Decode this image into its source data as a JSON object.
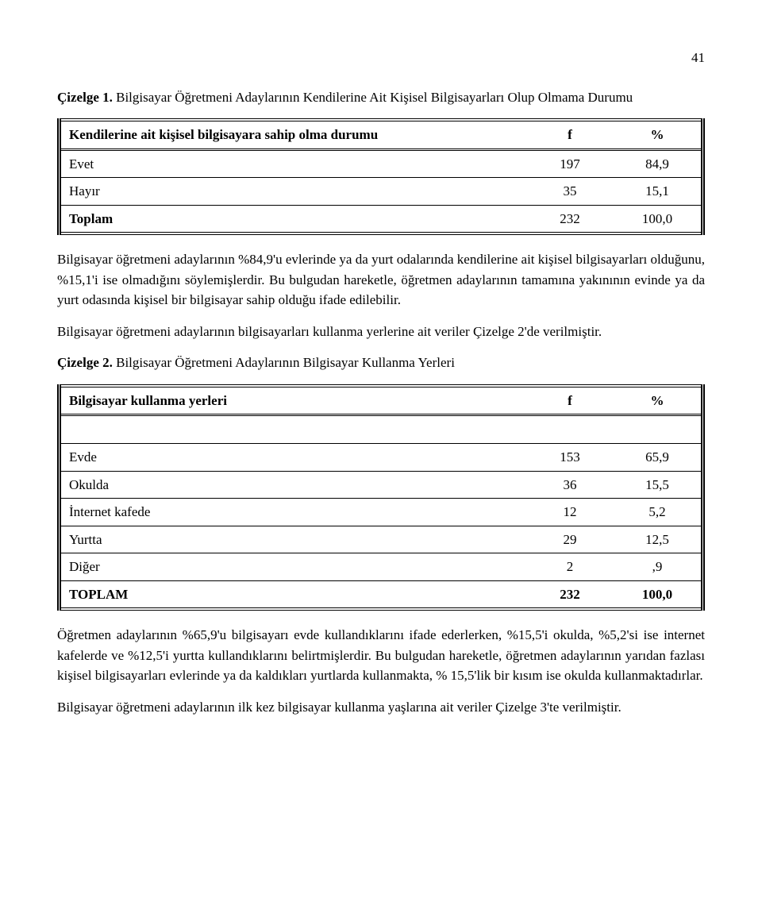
{
  "page_number": "41",
  "caption1_prefix": "Çizelge 1.",
  "caption1_text": " Bilgisayar Öğretmeni Adaylarının Kendilerine Ait Kişisel Bilgisayarları Olup Olmama Durumu",
  "table1": {
    "header_label": "Kendilerine ait kişisel bilgisayara sahip olma durumu",
    "header_f": "f",
    "header_pct": "%",
    "rows": [
      {
        "label": "Evet",
        "f": "197",
        "pct": "84,9"
      },
      {
        "label": "Hayır",
        "f": "35",
        "pct": "15,1"
      },
      {
        "label": "Toplam",
        "f": "232",
        "pct": "100,0"
      }
    ]
  },
  "para1": "Bilgisayar öğretmeni adaylarının %84,9'u evlerinde ya da yurt odalarında kendilerine ait kişisel bilgisayarları olduğunu, %15,1'i ise olmadığını söylemişlerdir. Bu bulgudan hareketle, öğretmen adaylarının tamamına yakınının evinde ya da yurt odasında kişisel bir bilgisayar sahip olduğu ifade edilebilir.",
  "para2": "Bilgisayar öğretmeni adaylarının bilgisayarları kullanma yerlerine ait veriler Çizelge 2'de verilmiştir.",
  "caption2_prefix": "Çizelge 2.",
  "caption2_text": " Bilgisayar Öğretmeni Adaylarının Bilgisayar Kullanma Yerleri",
  "table2": {
    "header_label": "Bilgisayar kullanma yerleri",
    "header_f": "f",
    "header_pct": "%",
    "rows": [
      {
        "label": "Evde",
        "f": "153",
        "pct": "65,9"
      },
      {
        "label": "Okulda",
        "f": "36",
        "pct": "15,5"
      },
      {
        "label": "İnternet kafede",
        "f": "12",
        "pct": "5,2"
      },
      {
        "label": "Yurtta",
        "f": "29",
        "pct": "12,5"
      },
      {
        "label": "Diğer",
        "f": "2",
        "pct": ",9"
      },
      {
        "label": "TOPLAM",
        "f": "232",
        "pct": "100,0"
      }
    ]
  },
  "para3": "Öğretmen adaylarının %65,9'u bilgisayarı evde kullandıklarını ifade ederlerken, %15,5'i okulda, %5,2'si ise internet kafelerde ve %12,5'i yurtta kullandıklarını belirtmişlerdir. Bu bulgudan hareketle, öğretmen adaylarının yarıdan fazlası kişisel bilgisayarları evlerinde ya da kaldıkları yurtlarda kullanmakta, % 15,5'lik bir kısım ise okulda kullanmaktadırlar.",
  "para4": "Bilgisayar öğretmeni adaylarının ilk kez bilgisayar kullanma yaşlarına ait veriler Çizelge 3'te verilmiştir."
}
